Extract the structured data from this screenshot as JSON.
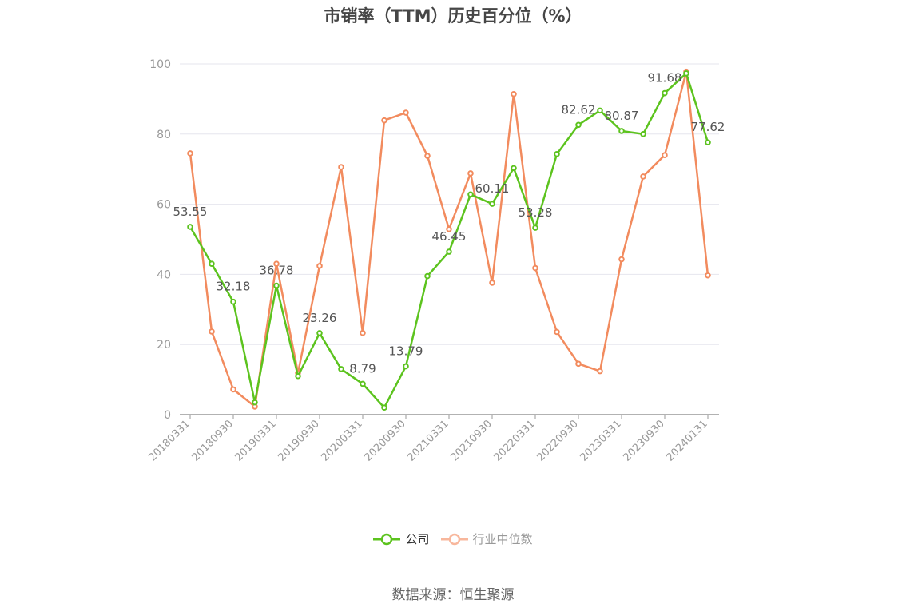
{
  "title": "市销率（TTM）历史百分位（%）",
  "source": "数据来源：恒生聚源",
  "colors": {
    "company": "#5cc31e",
    "industry": "#f28b5e",
    "industry_legend": "#f8b79c",
    "grid": "#e6e6ee",
    "axis": "#999999"
  },
  "chart_data": {
    "type": "line",
    "ylim": [
      0,
      100
    ],
    "yticks": [
      0,
      20,
      40,
      60,
      80,
      100
    ],
    "x": [
      "20180331",
      "20180630",
      "20180930",
      "20181231",
      "20190331",
      "20190630",
      "20190930",
      "20191231",
      "20200331",
      "20200630",
      "20200930",
      "20201231",
      "20210331",
      "20210630",
      "20210930",
      "20211231",
      "20220331",
      "20220630",
      "20220930",
      "20221231",
      "20230331",
      "20230630",
      "20230930",
      "20231231",
      "20240131"
    ],
    "x_tick_labels": [
      "20180331",
      "20180930",
      "20190331",
      "20190930",
      "20200331",
      "20200930",
      "20210331",
      "20210930",
      "20220331",
      "20220930",
      "20230331",
      "20230930",
      "20240131"
    ],
    "grid": true,
    "legend_position": "bottom",
    "series": [
      {
        "name": "公司",
        "values": [
          53.55,
          43.0,
          32.18,
          3.5,
          36.78,
          11.0,
          23.26,
          13.0,
          8.79,
          2.0,
          13.79,
          39.5,
          46.45,
          62.8,
          60.11,
          70.3,
          53.28,
          74.3,
          82.62,
          86.7,
          80.87,
          80.0,
          91.68,
          97.3,
          77.62
        ],
        "labels": {
          "0": "53.55",
          "2": "32.18",
          "4": "36.78",
          "6": "23.26",
          "8": "8.79",
          "10": "13.79",
          "12": "46.45",
          "14": "60.11",
          "16": "53.28",
          "18": "82.62",
          "20": "80.87",
          "22": "91.68",
          "24": "77.62"
        }
      },
      {
        "name": "行业中位数",
        "values": [
          74.5,
          23.7,
          7.2,
          2.3,
          43.0,
          11.9,
          42.4,
          70.6,
          23.3,
          83.9,
          86.1,
          73.8,
          52.9,
          68.8,
          37.6,
          91.4,
          41.8,
          23.6,
          14.5,
          12.4,
          44.3,
          67.9,
          74.0,
          97.8,
          39.7
        ]
      }
    ]
  }
}
